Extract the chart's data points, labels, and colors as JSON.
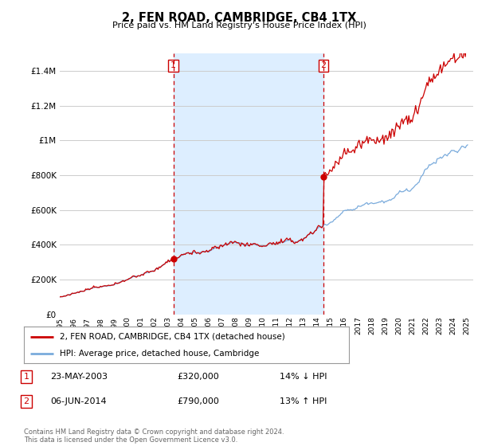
{
  "title": "2, FEN ROAD, CAMBRIDGE, CB4 1TX",
  "subtitle": "Price paid vs. HM Land Registry's House Price Index (HPI)",
  "property_label": "2, FEN ROAD, CAMBRIDGE, CB4 1TX (detached house)",
  "hpi_label": "HPI: Average price, detached house, Cambridge",
  "sale1_label": "1",
  "sale1_date": "23-MAY-2003",
  "sale1_price": "£320,000",
  "sale1_hpi": "14% ↓ HPI",
  "sale2_label": "2",
  "sale2_date": "06-JUN-2014",
  "sale2_price": "£790,000",
  "sale2_hpi": "13% ↑ HPI",
  "sale1_year": 2003.38,
  "sale1_value": 320000,
  "sale2_year": 2014.45,
  "sale2_value": 790000,
  "footnote": "Contains HM Land Registry data © Crown copyright and database right 2024.\nThis data is licensed under the Open Government Licence v3.0.",
  "ylim": [
    0,
    1500000
  ],
  "xlim_start": 1995.0,
  "xlim_end": 2025.5,
  "property_color": "#cc0000",
  "hpi_color": "#7aabdc",
  "shade_color": "#ddeeff",
  "vline_color": "#cc0000",
  "grid_color": "#cccccc",
  "bg_color": "#ffffff"
}
